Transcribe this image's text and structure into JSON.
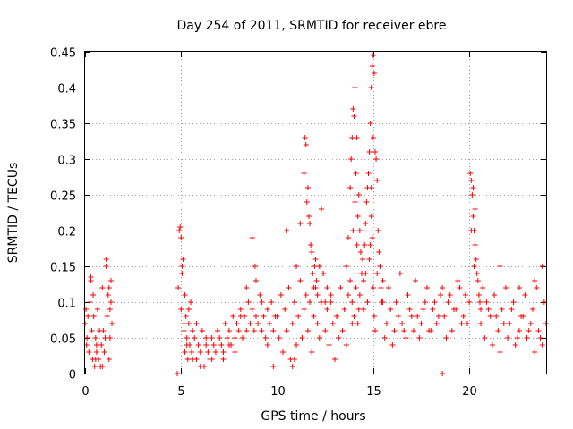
{
  "chart_data": {
    "type": "scatter",
    "title": "Day 254 of 2011, SRMTID for receiver ebre",
    "xlabel": "GPS time / hours",
    "ylabel": "SRMTID / TECUs",
    "xlim": [
      0,
      24
    ],
    "ylim": [
      0,
      0.45
    ],
    "x_ticks": [
      0,
      5,
      10,
      15,
      20
    ],
    "x_tick_labels": [
      "0",
      "5",
      "10",
      "15",
      "20"
    ],
    "y_ticks": [
      0,
      0.05,
      0.1,
      0.15,
      0.2,
      0.25,
      0.3,
      0.35,
      0.4,
      0.45
    ],
    "y_tick_labels": [
      "0",
      "0.05",
      "0.1",
      "0.15",
      "0.2",
      "0.25",
      "0.3",
      "0.35",
      "0.4",
      "0.45"
    ],
    "grid": true,
    "marker": "+",
    "color": "#ff0000",
    "series": [
      {
        "name": "SRMTID",
        "x": [
          0.0,
          0.05,
          0.1,
          0.15,
          0.2,
          0.25,
          0.3,
          0.35,
          0.4,
          0.45,
          0.5,
          0.55,
          0.6,
          0.65,
          0.7,
          0.75,
          0.8,
          0.85,
          0.9,
          0.95,
          1.0,
          1.05,
          1.1,
          1.15,
          1.2,
          1.25,
          1.3,
          1.35,
          1.4,
          0.08,
          0.3,
          0.42,
          0.55,
          0.9,
          1.1,
          1.25,
          1.3,
          0.6,
          1.35,
          4.8,
          4.85,
          4.9,
          4.95,
          5.0,
          5.05,
          5.1,
          5.15,
          5.2,
          5.25,
          5.3,
          5.35,
          5.4,
          5.45,
          5.5,
          5.55,
          5.6,
          5.7,
          5.8,
          5.9,
          6.0,
          6.1,
          6.2,
          6.3,
          6.4,
          6.5,
          6.6,
          6.7,
          6.8,
          6.9,
          7.0,
          7.1,
          7.2,
          7.3,
          7.4,
          7.5,
          7.6,
          7.7,
          7.8,
          7.9,
          8.0,
          8.1,
          8.2,
          8.3,
          8.4,
          8.5,
          8.6,
          8.7,
          8.8,
          8.9,
          9.0,
          9.1,
          9.2,
          9.3,
          9.4,
          9.5,
          9.6,
          9.7,
          9.8,
          9.9,
          5.0,
          5.05,
          5.15,
          5.2,
          5.3,
          5.4,
          5.6,
          5.8,
          6.0,
          6.3,
          6.6,
          6.9,
          7.2,
          7.5,
          7.8,
          8.1,
          8.4,
          8.7,
          8.85,
          8.9,
          9.2,
          9.5,
          9.8,
          10.0,
          10.1,
          10.2,
          10.3,
          10.4,
          10.5,
          10.6,
          10.7,
          10.8,
          10.9,
          11.0,
          11.1,
          11.2,
          11.3,
          11.4,
          11.5,
          11.6,
          11.7,
          11.8,
          11.9,
          12.0,
          12.1,
          12.2,
          12.3,
          12.4,
          12.5,
          12.6,
          12.7,
          12.8,
          12.9,
          13.0,
          13.1,
          13.2,
          13.3,
          13.4,
          13.5,
          13.6,
          13.7,
          13.8,
          13.9,
          10.5,
          10.8,
          11.0,
          11.2,
          11.4,
          11.45,
          11.5,
          11.55,
          11.6,
          11.65,
          11.7,
          11.75,
          11.8,
          11.85,
          11.9,
          11.95,
          12.0,
          12.05,
          12.1,
          12.2,
          12.3,
          12.4,
          12.5,
          12.6,
          10.9,
          12.8,
          13.1,
          13.4,
          13.6,
          13.7,
          13.8,
          13.85,
          13.9,
          13.95,
          14.0,
          14.05,
          14.1,
          14.15,
          14.2,
          14.25,
          14.3,
          14.35,
          14.4,
          14.45,
          14.5,
          14.55,
          14.6,
          14.65,
          14.7,
          14.75,
          14.8,
          14.85,
          14.9,
          14.95,
          15.0,
          15.05,
          15.1,
          15.15,
          15.2,
          15.25,
          15.3,
          15.35,
          15.4,
          15.45,
          15.5,
          13.9,
          14.0,
          14.1,
          14.2,
          14.3,
          14.5,
          14.6,
          14.7,
          14.8,
          14.85,
          14.9,
          14.95,
          15.0,
          15.05,
          15.1,
          15.2,
          13.95,
          14.05,
          14.15,
          14.25,
          14.9,
          15.0,
          15.5,
          15.7,
          15.9,
          16.1,
          16.3,
          16.5,
          16.7,
          16.9,
          17.1,
          17.3,
          17.5,
          17.7,
          17.9,
          18.1,
          18.3,
          18.5,
          18.7,
          18.9,
          19.1,
          19.3,
          19.5,
          19.7,
          19.9,
          20.0,
          15.6,
          15.8,
          16.0,
          16.2,
          16.4,
          16.6,
          16.8,
          17.0,
          17.2,
          17.4,
          17.6,
          17.8,
          18.0,
          18.2,
          18.4,
          18.6,
          18.8,
          19.0,
          19.2,
          19.4,
          19.6,
          19.8,
          18.6,
          20.05,
          20.1,
          20.15,
          20.2,
          20.25,
          20.3,
          20.35,
          20.4,
          20.45,
          20.5,
          20.55,
          20.6,
          20.2,
          20.3,
          20.1,
          20.25,
          20.6,
          20.8,
          21.0,
          21.2,
          21.4,
          21.6,
          21.8,
          22.0,
          22.2,
          22.4,
          22.6,
          22.8,
          23.0,
          23.2,
          23.4,
          23.6,
          23.8,
          24.0,
          20.7,
          20.9,
          21.1,
          21.3,
          21.5,
          21.7,
          21.9,
          22.1,
          22.3,
          22.5,
          22.7,
          22.9,
          23.1,
          23.3,
          23.5,
          23.7,
          23.9,
          21.6,
          22.6,
          23.4,
          23.8
        ],
        "y": [
          0.07,
          0.09,
          0.05,
          0.08,
          0.03,
          0.1,
          0.13,
          0.06,
          0.02,
          0.08,
          0.01,
          0.05,
          0.04,
          0.09,
          0.02,
          0.06,
          0.01,
          0.04,
          0.12,
          0.06,
          0.03,
          0.05,
          0.16,
          0.08,
          0.11,
          0.02,
          0.09,
          0.13,
          0.07,
          0.04,
          0.135,
          0.11,
          0.02,
          0.01,
          0.15,
          0.12,
          0.05,
          0.03,
          0.1,
          0.0,
          0.12,
          0.2,
          0.205,
          0.09,
          0.14,
          0.16,
          0.06,
          0.03,
          0.08,
          0.05,
          0.02,
          0.07,
          0.04,
          0.1,
          0.03,
          0.06,
          0.05,
          0.02,
          0.04,
          0.03,
          0.06,
          0.01,
          0.04,
          0.03,
          0.02,
          0.05,
          0.04,
          0.03,
          0.06,
          0.05,
          0.04,
          0.03,
          0.07,
          0.05,
          0.06,
          0.04,
          0.08,
          0.05,
          0.07,
          0.06,
          0.09,
          0.05,
          0.08,
          0.06,
          0.1,
          0.07,
          0.09,
          0.06,
          0.08,
          0.07,
          0.11,
          0.06,
          0.08,
          0.05,
          0.09,
          0.07,
          0.1,
          0.06,
          0.08,
          0.19,
          0.15,
          0.07,
          0.11,
          0.04,
          0.09,
          0.02,
          0.07,
          0.01,
          0.05,
          0.02,
          0.06,
          0.02,
          0.04,
          0.03,
          0.08,
          0.12,
          0.19,
          0.15,
          0.13,
          0.1,
          0.04,
          0.01,
          0.08,
          0.05,
          0.11,
          0.03,
          0.09,
          0.06,
          0.12,
          0.02,
          0.07,
          0.1,
          0.04,
          0.08,
          0.13,
          0.05,
          0.09,
          0.11,
          0.06,
          0.1,
          0.03,
          0.08,
          0.12,
          0.07,
          0.05,
          0.1,
          0.14,
          0.06,
          0.09,
          0.04,
          0.11,
          0.07,
          0.02,
          0.08,
          0.05,
          0.12,
          0.06,
          0.09,
          0.04,
          0.11,
          0.13,
          0.07,
          0.2,
          0.01,
          0.15,
          0.21,
          0.28,
          0.33,
          0.32,
          0.24,
          0.26,
          0.22,
          0.21,
          0.18,
          0.17,
          0.14,
          0.12,
          0.15,
          0.16,
          0.13,
          0.11,
          0.15,
          0.23,
          0.14,
          0.1,
          0.12,
          0.02,
          0.1,
          0.08,
          0.06,
          0.15,
          0.19,
          0.26,
          0.3,
          0.33,
          0.37,
          0.36,
          0.4,
          0.28,
          0.33,
          0.22,
          0.25,
          0.2,
          0.17,
          0.14,
          0.16,
          0.13,
          0.18,
          0.21,
          0.24,
          0.26,
          0.28,
          0.31,
          0.35,
          0.4,
          0.43,
          0.445,
          0.42,
          0.31,
          0.3,
          0.27,
          0.2,
          0.17,
          0.15,
          0.12,
          0.1,
          0.13,
          0.1,
          0.08,
          0.12,
          0.07,
          0.11,
          0.09,
          0.14,
          0.1,
          0.16,
          0.18,
          0.22,
          0.19,
          0.12,
          0.08,
          0.06,
          0.14,
          0.2,
          0.24,
          0.18,
          0.09,
          0.26,
          0.33,
          0.1,
          0.07,
          0.09,
          0.06,
          0.08,
          0.07,
          0.05,
          0.09,
          0.06,
          0.08,
          0.07,
          0.1,
          0.06,
          0.09,
          0.07,
          0.11,
          0.08,
          0.1,
          0.06,
          0.09,
          0.12,
          0.08,
          0.07,
          0.1,
          0.05,
          0.12,
          0.04,
          0.1,
          0.14,
          0.06,
          0.11,
          0.08,
          0.13,
          0.05,
          0.09,
          0.12,
          0.06,
          0.1,
          0.08,
          0.12,
          0.05,
          0.11,
          0.09,
          0.13,
          0.07,
          0.11,
          0.0,
          0.28,
          0.27,
          0.25,
          0.22,
          0.2,
          0.18,
          0.16,
          0.14,
          0.13,
          0.11,
          0.1,
          0.09,
          0.26,
          0.23,
          0.2,
          0.15,
          0.07,
          0.05,
          0.09,
          0.04,
          0.08,
          0.03,
          0.07,
          0.05,
          0.09,
          0.04,
          0.06,
          0.08,
          0.05,
          0.07,
          0.03,
          0.06,
          0.04,
          0.07,
          0.12,
          0.1,
          0.08,
          0.11,
          0.06,
          0.09,
          0.12,
          0.07,
          0.1,
          0.05,
          0.08,
          0.11,
          0.06,
          0.09,
          0.12,
          0.05,
          0.1,
          0.15,
          0.12,
          0.13,
          0.15
        ]
      }
    ]
  }
}
